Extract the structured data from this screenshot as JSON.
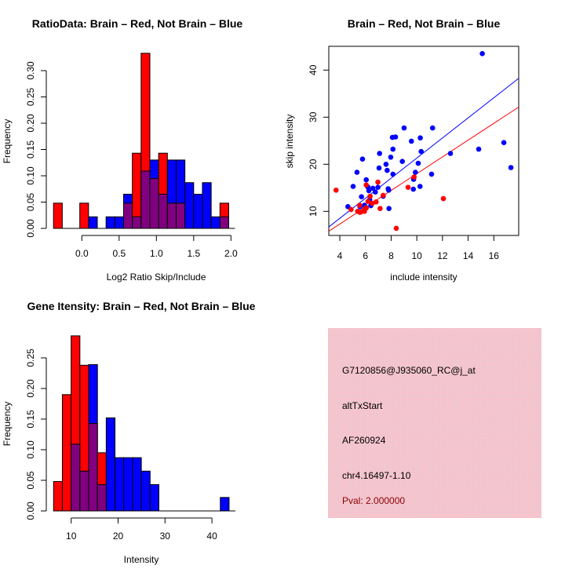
{
  "colors": {
    "brain": "#ff0000",
    "not_brain": "#0000ff",
    "overlap": "#800080",
    "info_bg": "#f2c4cd",
    "pval": "#8b0000"
  },
  "chart_data": [
    {
      "type": "bar",
      "subtype": "overlaid-histogram",
      "title": "RatioData: Brain – Red, Not Brain – Blue",
      "xlabel": "Log2 Ratio Skip/Include",
      "ylabel": "Frequency",
      "bin_start": -0.38,
      "bin_width": 0.1175,
      "xticks": [
        "0.0",
        "0.5",
        "1.0",
        "1.5",
        "2.0"
      ],
      "yticks": [
        "0.00",
        "0.05",
        "0.10",
        "0.15",
        "0.20",
        "0.25",
        "0.30"
      ],
      "ylim": [
        0,
        0.33
      ],
      "series": [
        {
          "name": "Brain",
          "color": "red",
          "values": [
            0.048,
            0,
            0,
            0.048,
            0,
            0,
            0,
            0,
            0.048,
            0.143,
            0.333,
            0.095,
            0.143,
            0.048,
            0.048,
            0,
            0,
            0,
            0,
            0.048
          ]
        },
        {
          "name": "Not Brain",
          "color": "blue",
          "values": [
            0,
            0,
            0,
            0,
            0.022,
            0,
            0.022,
            0.022,
            0.065,
            0.022,
            0.109,
            0.13,
            0.065,
            0.13,
            0.13,
            0.087,
            0.065,
            0.087,
            0.022,
            0.022
          ]
        }
      ]
    },
    {
      "type": "scatter",
      "title": "Brain – Red, Not Brain – Blue",
      "xlabel": "include intensity",
      "ylabel": "skip intensity",
      "xlim": [
        3.16,
        17.92
      ],
      "ylim": [
        4.9,
        45.0
      ],
      "xticks": [
        "4",
        "6",
        "8",
        "10",
        "12",
        "14",
        "16"
      ],
      "yticks": [
        "10",
        "20",
        "30",
        "40"
      ],
      "series": [
        {
          "name": "Not Brain",
          "color": "blue",
          "fit": {
            "slope": 2.134,
            "intercept": -0.02
          },
          "points": [
            [
              15.1,
              43.5
            ],
            [
              9.01,
              27.7
            ],
            [
              11.23,
              27.7
            ],
            [
              8.1,
              25.7
            ],
            [
              8.34,
              25.8
            ],
            [
              9.58,
              24.9
            ],
            [
              10.27,
              25.6
            ],
            [
              8.14,
              23.2
            ],
            [
              7.1,
              22.3
            ],
            [
              10.34,
              22.7
            ],
            [
              5.77,
              21.1
            ],
            [
              7.97,
              21.5
            ],
            [
              8.87,
              20.6
            ],
            [
              12.62,
              22.3
            ],
            [
              14.82,
              23.2
            ],
            [
              16.78,
              24.6
            ],
            [
              17.33,
              19.3
            ],
            [
              10.11,
              20.2
            ],
            [
              7.6,
              20.0
            ],
            [
              7.06,
              19.2
            ],
            [
              7.69,
              18.7
            ],
            [
              5.34,
              18.3
            ],
            [
              8.14,
              17.9
            ],
            [
              9.89,
              18.3
            ],
            [
              11.15,
              17.9
            ],
            [
              5.04,
              15.3
            ],
            [
              6.06,
              16.7
            ],
            [
              9.75,
              16.8
            ],
            [
              10.25,
              15.3
            ],
            [
              9.73,
              14.7
            ],
            [
              6.18,
              15.2
            ],
            [
              6.26,
              14.4
            ],
            [
              6.57,
              14.9
            ],
            [
              6.97,
              15.1
            ],
            [
              6.77,
              14.1
            ],
            [
              7.77,
              14.8
            ],
            [
              7.81,
              14.5
            ],
            [
              5.69,
              13.1
            ],
            [
              7.38,
              13.2
            ],
            [
              6.33,
              12.5
            ],
            [
              4.63,
              11.0
            ],
            [
              5.92,
              11.3
            ],
            [
              5.57,
              11.0
            ],
            [
              6.42,
              11.2
            ],
            [
              7.83,
              10.6
            ]
          ]
        },
        {
          "name": "Brain",
          "color": "red",
          "fit": {
            "slope": 1.782,
            "intercept": 0.18
          },
          "points": [
            [
              3.71,
              14.5
            ],
            [
              4.88,
              10.4
            ],
            [
              5.39,
              10.0
            ],
            [
              5.65,
              9.9
            ],
            [
              5.92,
              10.0
            ],
            [
              6.06,
              10.7
            ],
            [
              5.55,
              11.3
            ],
            [
              6.06,
              15.6
            ],
            [
              6.97,
              16.2
            ],
            [
              7.14,
              10.6
            ],
            [
              6.2,
              12.1
            ],
            [
              6.36,
              13.2
            ],
            [
              6.53,
              11.7
            ],
            [
              6.83,
              12.0
            ],
            [
              7.38,
              13.4
            ],
            [
              8.4,
              6.4
            ],
            [
              9.32,
              15.1
            ],
            [
              9.79,
              17.3
            ],
            [
              12.07,
              12.7
            ],
            [
              5.57,
              9.8
            ],
            [
              5.9,
              10.4
            ]
          ]
        }
      ]
    },
    {
      "type": "bar",
      "subtype": "overlaid-histogram",
      "title": "Gene Itensity: Brain – Red, Not Brain – Blue",
      "xlabel": "Intensity",
      "ylabel": "Frequency",
      "bin_start": 6.25,
      "bin_width": 1.87,
      "xticks": [
        "10",
        "20",
        "30",
        "40"
      ],
      "yticks": [
        "0.00",
        "0.05",
        "0.10",
        "0.15",
        "0.20",
        "0.25"
      ],
      "ylim": [
        0,
        0.29
      ],
      "series": [
        {
          "name": "Brain",
          "color": "red",
          "values": [
            0.048,
            0.19,
            0.286,
            0.238,
            0.143,
            0.095,
            0,
            0,
            0,
            0,
            0,
            0,
            0,
            0,
            0,
            0,
            0,
            0,
            0,
            0
          ]
        },
        {
          "name": "Not Brain",
          "color": "blue",
          "values": [
            0,
            0,
            0.109,
            0.065,
            0.239,
            0.043,
            0.152,
            0.087,
            0.087,
            0.087,
            0.065,
            0.043,
            0,
            0,
            0,
            0,
            0,
            0,
            0,
            0.022
          ]
        }
      ]
    }
  ],
  "info": {
    "probe_id": "G7120856@J935060_RC@j_at",
    "event_type": "altTxStart",
    "accession": "AF260924",
    "location": "chr4.16497-1.10",
    "pval": "Pval: 2.000000"
  }
}
